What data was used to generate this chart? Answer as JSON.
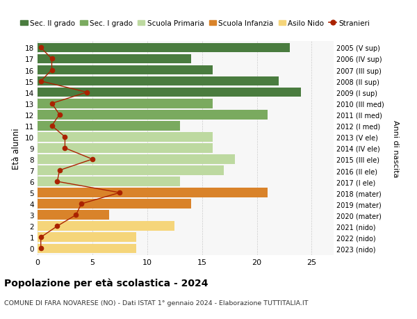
{
  "ages": [
    18,
    17,
    16,
    15,
    14,
    13,
    12,
    11,
    10,
    9,
    8,
    7,
    6,
    5,
    4,
    3,
    2,
    1,
    0
  ],
  "years": [
    "2005 (V sup)",
    "2006 (IV sup)",
    "2007 (III sup)",
    "2008 (II sup)",
    "2009 (I sup)",
    "2010 (III med)",
    "2011 (II med)",
    "2012 (I med)",
    "2013 (V ele)",
    "2014 (IV ele)",
    "2015 (III ele)",
    "2016 (II ele)",
    "2017 (I ele)",
    "2018 (mater)",
    "2019 (mater)",
    "2020 (mater)",
    "2021 (nido)",
    "2022 (nido)",
    "2023 (nido)"
  ],
  "bar_values": [
    23.0,
    14.0,
    16.0,
    22.0,
    24.0,
    16.0,
    21.0,
    13.0,
    16.0,
    16.0,
    18.0,
    17.0,
    13.0,
    21.0,
    14.0,
    6.5,
    12.5,
    9.0,
    9.0
  ],
  "bar_colors": [
    "#4a7c3f",
    "#4a7c3f",
    "#4a7c3f",
    "#4a7c3f",
    "#4a7c3f",
    "#7aaa5f",
    "#7aaa5f",
    "#7aaa5f",
    "#bdd9a0",
    "#bdd9a0",
    "#bdd9a0",
    "#bdd9a0",
    "#bdd9a0",
    "#d9832a",
    "#d9832a",
    "#d9832a",
    "#f5d57a",
    "#f5d57a",
    "#f5d57a"
  ],
  "stranieri_values": [
    0.3,
    1.3,
    1.3,
    0.3,
    4.5,
    1.3,
    2.0,
    1.3,
    2.5,
    2.5,
    5.0,
    2.0,
    1.8,
    7.5,
    4.0,
    3.5,
    1.8,
    0.3,
    0.3
  ],
  "title_bold": "Popolazione per età scolastica - 2024",
  "subtitle": "COMUNE DI FARA NOVARESE (NO) - Dati ISTAT 1° gennaio 2024 - Elaborazione TUTTITALIA.IT",
  "ylabel": "Età alunni",
  "right_ylabel": "Anni di nascita",
  "xlim": [
    0,
    27
  ],
  "color_sec2": "#4a7c3f",
  "color_sec1": "#7aaa5f",
  "color_prim": "#bdd9a0",
  "color_inf": "#d9832a",
  "color_nido": "#f5d57a",
  "color_stranieri": "#aa2200",
  "legend_labels": [
    "Sec. II grado",
    "Sec. I grado",
    "Scuola Primaria",
    "Scuola Infanzia",
    "Asilo Nido",
    "Stranieri"
  ],
  "bg_color": "#f7f7f7",
  "grid_color": "#cccccc",
  "bar_height": 0.85,
  "figsize": [
    6.0,
    4.6
  ],
  "dpi": 100
}
